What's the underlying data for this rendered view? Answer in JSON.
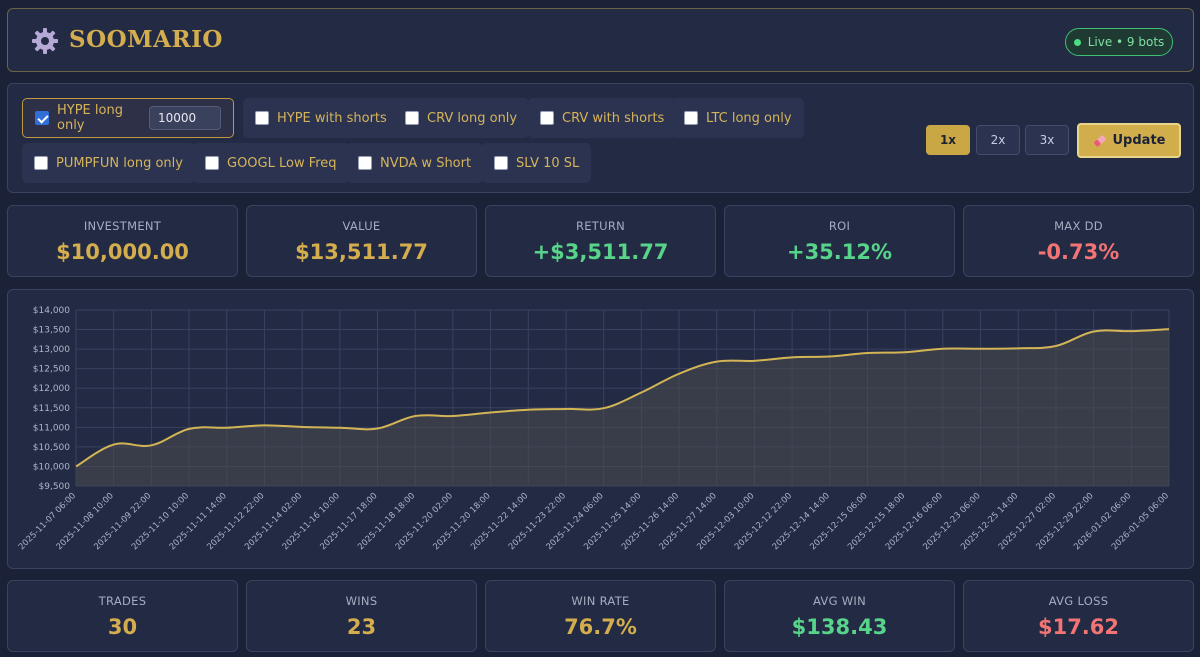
{
  "header": {
    "brand": "SOOMARIO",
    "status": "Live • 9 bots",
    "logo_icon": "gear-icon"
  },
  "controls": {
    "bots": [
      {
        "label": "HYPE long only",
        "checked": true,
        "amount": "10000"
      },
      {
        "label": "HYPE with shorts",
        "checked": false
      },
      {
        "label": "CRV long only",
        "checked": false
      },
      {
        "label": "CRV with shorts",
        "checked": false
      },
      {
        "label": "LTC long only",
        "checked": false
      },
      {
        "label": "PUMPFUN long only",
        "checked": false
      },
      {
        "label": "GOOGL Low Freq",
        "checked": false
      },
      {
        "label": "NVDA w Short",
        "checked": false
      },
      {
        "label": "SLV 10 SL",
        "checked": false
      }
    ],
    "leverage": [
      {
        "label": "1x",
        "active": true
      },
      {
        "label": "2x",
        "active": false
      },
      {
        "label": "3x",
        "active": false
      }
    ],
    "update_label": "Update",
    "update_icon": "eraser-icon"
  },
  "stats_top": [
    {
      "label": "INVESTMENT",
      "value": "$10,000.00",
      "tone": "gold"
    },
    {
      "label": "VALUE",
      "value": "$13,511.77",
      "tone": "gold"
    },
    {
      "label": "RETURN",
      "value": "+$3,511.77",
      "tone": "pos"
    },
    {
      "label": "ROI",
      "value": "+35.12%",
      "tone": "pos"
    },
    {
      "label": "MAX DD",
      "value": "-0.73%",
      "tone": "neg"
    }
  ],
  "stats_bottom": [
    {
      "label": "TRADES",
      "value": "30",
      "tone": "gold"
    },
    {
      "label": "WINS",
      "value": "23",
      "tone": "gold"
    },
    {
      "label": "WIN RATE",
      "value": "76.7%",
      "tone": "gold"
    },
    {
      "label": "AVG WIN",
      "value": "$138.43",
      "tone": "pos"
    },
    {
      "label": "AVG LOSS",
      "value": "$17.62",
      "tone": "neg"
    }
  ],
  "colors": {
    "gold": "#d4ad4e",
    "pos": "#57d48a",
    "neg": "#f27474",
    "line": "#d4b556"
  },
  "chart_data": {
    "type": "area",
    "title": "",
    "xlabel": "",
    "ylabel": "",
    "ylim": [
      9500,
      14000
    ],
    "yticks": [
      9500,
      10000,
      10500,
      11000,
      11500,
      12000,
      12500,
      13000,
      13500,
      14000
    ],
    "ytick_labels": [
      "$9,500",
      "$10,000",
      "$10,500",
      "$11,000",
      "$11,500",
      "$12,000",
      "$12,500",
      "$13,000",
      "$13,500",
      "$14,000"
    ],
    "categories": [
      "2025-11-07 06:00",
      "2025-11-08 10:00",
      "2025-11-09 22:00",
      "2025-11-10 10:00",
      "2025-11-11 14:00",
      "2025-11-12 22:00",
      "2025-11-14 02:00",
      "2025-11-16 10:00",
      "2025-11-17 18:00",
      "2025-11-18 18:00",
      "2025-11-20 02:00",
      "2025-11-20 18:00",
      "2025-11-22 14:00",
      "2025-11-23 22:00",
      "2025-11-24 06:00",
      "2025-11-25 14:00",
      "2025-11-26 14:00",
      "2025-11-27 14:00",
      "2025-12-03 10:00",
      "2025-12-12 22:00",
      "2025-12-14 14:00",
      "2025-12-15 06:00",
      "2025-12-15 18:00",
      "2025-12-16 06:00",
      "2025-12-23 06:00",
      "2025-12-25 14:00",
      "2025-12-27 02:00",
      "2025-12-29 22:00",
      "2026-01-02 06:00",
      "2026-01-05 06:00"
    ],
    "values": [
      10000,
      10560,
      10540,
      10960,
      10990,
      11050,
      11010,
      10990,
      10970,
      11290,
      11290,
      11380,
      11450,
      11470,
      11490,
      11890,
      12370,
      12680,
      12700,
      12790,
      12810,
      12900,
      12920,
      13010,
      13010,
      13020,
      13080,
      13450,
      13460,
      13510
    ],
    "grid": true,
    "legend": "none"
  }
}
